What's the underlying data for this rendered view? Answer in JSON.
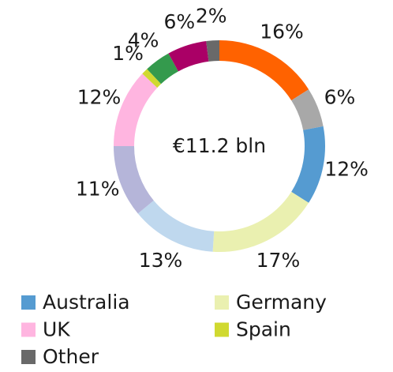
{
  "chart_data": {
    "type": "pie",
    "center_label": "€11.2 bln",
    "categories": [
      null,
      null,
      "Australia",
      "Germany",
      null,
      null,
      "UK",
      "Spain",
      null,
      null,
      "Other"
    ],
    "values": [
      16,
      6,
      12,
      17,
      13,
      11,
      12,
      1,
      4,
      6,
      2
    ],
    "value_labels": [
      "16%",
      "6%",
      "12%",
      "17%",
      "13%",
      "11%",
      "12%",
      "1%",
      "4%",
      "6%",
      "2%"
    ],
    "colors": [
      "#ff6200",
      "#a8a8a8",
      "#559bd1",
      "#eaf0b0",
      "#bfd8ee",
      "#b5b5d9",
      "#ffb5e0",
      "#d0d930",
      "#349a4d",
      "#aa0066",
      "#696969"
    ],
    "legend": "bottom"
  }
}
